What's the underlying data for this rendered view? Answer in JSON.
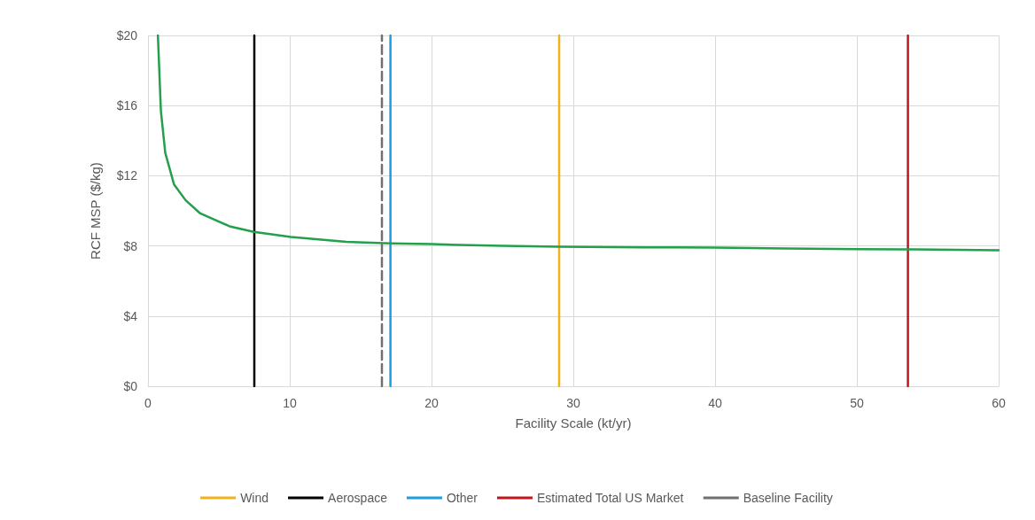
{
  "chart_data": {
    "type": "line",
    "xlabel": "Facility Scale (kt/yr)",
    "ylabel": "RCF MSP ($/kg)",
    "xlim": [
      0,
      60
    ],
    "xticks": [
      0,
      10,
      20,
      30,
      40,
      50,
      60
    ],
    "ylim": [
      0,
      20
    ],
    "yticks": [
      {
        "value": 0,
        "label": "$0"
      },
      {
        "value": 4,
        "label": "$4"
      },
      {
        "value": 8,
        "label": "$8"
      },
      {
        "value": 12,
        "label": "$12"
      },
      {
        "value": 16,
        "label": "$16"
      },
      {
        "value": 20,
        "label": "$20"
      }
    ],
    "grid": true,
    "legend": "bottom",
    "marker": "none",
    "line_style": "solid",
    "series": [
      {
        "color": "#22a04b",
        "x": [
          0.7,
          0.91,
          1.22,
          1.84,
          2.66,
          3.69,
          5.75,
          7.46,
          10.08,
          14,
          17.1,
          20,
          25,
          29,
          35,
          40,
          45,
          50,
          54,
          60
        ],
        "values": [
          20,
          15.7,
          13.3,
          11.5,
          10.6,
          9.85,
          9.12,
          8.8,
          8.51,
          8.23,
          8.15,
          8.1,
          8,
          7.95,
          7.92,
          7.9,
          7.85,
          7.82,
          7.8,
          7.75
        ]
      },
      {
        "name": "Wind",
        "color": "#f2b21c",
        "x": [
          29,
          29
        ],
        "values": [
          0,
          20
        ]
      },
      {
        "name": "Aerospace",
        "color": "#000000",
        "x": [
          7.5,
          7.5
        ],
        "values": [
          0,
          20
        ]
      },
      {
        "name": "Other",
        "color": "#1a9fdc",
        "x": [
          17.1,
          17.1
        ],
        "values": [
          0,
          20
        ]
      },
      {
        "name": "Estimated Total US Market",
        "color": "#c0161c",
        "x": [
          53.6,
          53.6
        ],
        "values": [
          0,
          20
        ]
      },
      {
        "name": "Baseline Facility",
        "color": "#707070",
        "line_style": "dashed",
        "x": [
          16.5,
          16.5
        ],
        "values": [
          0,
          20
        ]
      }
    ]
  }
}
